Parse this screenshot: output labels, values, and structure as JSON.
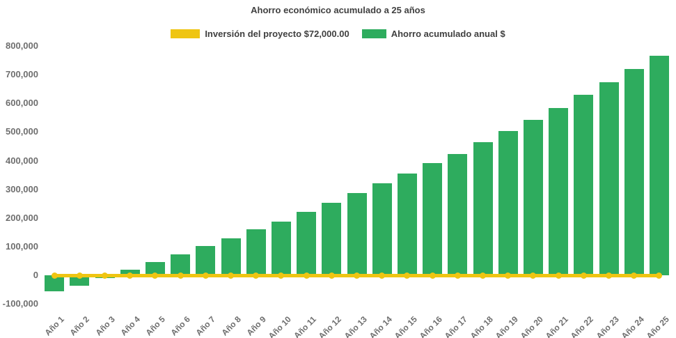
{
  "title": "Ahorro económico acumulado a 25 años",
  "legend": [
    {
      "label": "Inversión del proyecto $72,000.00",
      "color": "#EFC512",
      "sample": "line"
    },
    {
      "label": "Ahorro acumulado anual $",
      "color": "#2EAC5E",
      "sample": "bar"
    }
  ],
  "colors": {
    "background": "#ffffff",
    "bar_green": "#2EAC5E",
    "line_yellow": "#EFC512",
    "title_text": "#404040",
    "axis_text": "#6e6e6e"
  },
  "chart_data": {
    "type": "bar",
    "title": "Ahorro económico acumulado a 25 años",
    "categories": [
      "Año 1",
      "Año 2",
      "Año 3",
      "Año 4",
      "Año 5",
      "Año 6",
      "Año 7",
      "Año 8",
      "Año 9",
      "Año 10",
      "Año 11",
      "Año 12",
      "Año 13",
      "Año 14",
      "Año 15",
      "Año 16",
      "Año 17",
      "Año 18",
      "Año 19",
      "Año 20",
      "Año 21",
      "Año 22",
      "Año 23",
      "Año 24",
      "Año 25"
    ],
    "series": [
      {
        "name": "Ahorro acumulado anual $",
        "type": "bar",
        "color": "#2EAC5E",
        "values": [
          -55000,
          -37000,
          -9000,
          20000,
          45000,
          74000,
          103000,
          130000,
          161000,
          188000,
          221000,
          253000,
          286000,
          321000,
          354000,
          392000,
          424000,
          465000,
          503000,
          543000,
          584000,
          630000,
          674000,
          720000,
          766000
        ]
      },
      {
        "name": "Inversión del proyecto $72,000.00",
        "type": "line",
        "color": "#EFC512",
        "marker": "circle",
        "constant_value": 0
      }
    ],
    "ylim": [
      -100000,
      800000
    ],
    "yticks": [
      {
        "value": 800000,
        "label": "800,000"
      },
      {
        "value": 700000,
        "label": "700,000"
      },
      {
        "value": 600000,
        "label": "600,000"
      },
      {
        "value": 500000,
        "label": "500,000"
      },
      {
        "value": 400000,
        "label": "400,000"
      },
      {
        "value": 300000,
        "label": "300,000"
      },
      {
        "value": 200000,
        "label": "200,000"
      },
      {
        "value": 100000,
        "label": "100,000"
      },
      {
        "value": 0,
        "label": "0"
      },
      {
        "value": -100000,
        "label": "-100,000"
      }
    ],
    "grid": false,
    "legend_position": "top",
    "x_label_rotation_deg": -45
  }
}
